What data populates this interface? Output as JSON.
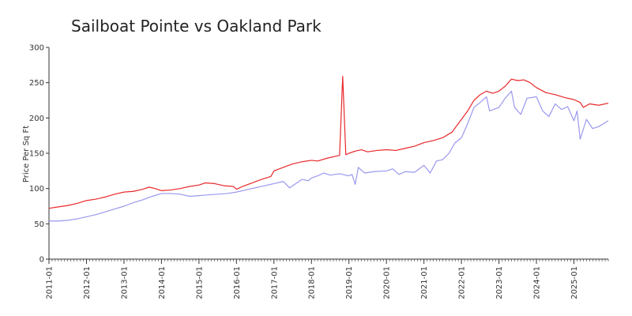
{
  "chart_data": {
    "type": "line",
    "title": "Sailboat Pointe vs Oakland Park",
    "xlabel": "",
    "ylabel": "Price Per Sq Ft",
    "ylim": [
      0,
      300
    ],
    "yticks": [
      0,
      50,
      100,
      150,
      200,
      250,
      300
    ],
    "xlim": [
      "2011-01",
      "2025-12"
    ],
    "xticks": [
      "2011-01",
      "2012-01",
      "2013-01",
      "2014-01",
      "2015-01",
      "2016-01",
      "2017-01",
      "2018-01",
      "2019-01",
      "2020-01",
      "2021-01",
      "2022-01",
      "2023-01",
      "2024-01",
      "2025-01"
    ],
    "grid": false,
    "legend": "none",
    "series": [
      {
        "color": "#e8282a",
        "points": [
          [
            "2011-01",
            72
          ],
          [
            "2011-04",
            74
          ],
          [
            "2011-07",
            76
          ],
          [
            "2011-10",
            79
          ],
          [
            "2012-01",
            83
          ],
          [
            "2012-04",
            85
          ],
          [
            "2012-07",
            88
          ],
          [
            "2012-10",
            92
          ],
          [
            "2013-01",
            95
          ],
          [
            "2013-04",
            96
          ],
          [
            "2013-07",
            99
          ],
          [
            "2013-09",
            102
          ],
          [
            "2013-11",
            100
          ],
          [
            "2014-01",
            97
          ],
          [
            "2014-04",
            98
          ],
          [
            "2014-07",
            100
          ],
          [
            "2014-10",
            103
          ],
          [
            "2015-01",
            105
          ],
          [
            "2015-03",
            108
          ],
          [
            "2015-06",
            107
          ],
          [
            "2015-09",
            104
          ],
          [
            "2015-12",
            103
          ],
          [
            "2016-01",
            99
          ],
          [
            "2016-03",
            103
          ],
          [
            "2016-06",
            108
          ],
          [
            "2016-09",
            113
          ],
          [
            "2016-12",
            117
          ],
          [
            "2017-01",
            125
          ],
          [
            "2017-04",
            130
          ],
          [
            "2017-07",
            135
          ],
          [
            "2017-10",
            138
          ],
          [
            "2018-01",
            140
          ],
          [
            "2018-03",
            139
          ],
          [
            "2018-06",
            143
          ],
          [
            "2018-09",
            146
          ],
          [
            "2018-10",
            147
          ],
          [
            "2018-11",
            259
          ],
          [
            "2018-12",
            148
          ],
          [
            "2019-01",
            150
          ],
          [
            "2019-03",
            153
          ],
          [
            "2019-05",
            155
          ],
          [
            "2019-07",
            152
          ],
          [
            "2019-10",
            154
          ],
          [
            "2020-01",
            155
          ],
          [
            "2020-04",
            154
          ],
          [
            "2020-07",
            157
          ],
          [
            "2020-10",
            160
          ],
          [
            "2021-01",
            165
          ],
          [
            "2021-04",
            168
          ],
          [
            "2021-07",
            172
          ],
          [
            "2021-10",
            180
          ],
          [
            "2022-01",
            198
          ],
          [
            "2022-03",
            210
          ],
          [
            "2022-05",
            225
          ],
          [
            "2022-07",
            233
          ],
          [
            "2022-09",
            238
          ],
          [
            "2022-11",
            235
          ],
          [
            "2023-01",
            238
          ],
          [
            "2023-03",
            245
          ],
          [
            "2023-05",
            255
          ],
          [
            "2023-07",
            253
          ],
          [
            "2023-09",
            254
          ],
          [
            "2023-11",
            250
          ],
          [
            "2024-01",
            243
          ],
          [
            "2024-04",
            236
          ],
          [
            "2024-07",
            233
          ],
          [
            "2024-10",
            229
          ],
          [
            "2025-01",
            226
          ],
          [
            "2025-03",
            222
          ],
          [
            "2025-04",
            215
          ],
          [
            "2025-06",
            220
          ],
          [
            "2025-09",
            218
          ],
          [
            "2025-12",
            221
          ]
        ]
      },
      {
        "color": "#9a98ee",
        "points": [
          [
            "2011-01",
            54
          ],
          [
            "2011-04",
            54
          ],
          [
            "2011-07",
            55
          ],
          [
            "2011-10",
            57
          ],
          [
            "2012-01",
            60
          ],
          [
            "2012-04",
            63
          ],
          [
            "2012-07",
            67
          ],
          [
            "2012-10",
            71
          ],
          [
            "2013-01",
            75
          ],
          [
            "2013-04",
            80
          ],
          [
            "2013-07",
            84
          ],
          [
            "2013-10",
            89
          ],
          [
            "2014-01",
            93
          ],
          [
            "2014-04",
            93
          ],
          [
            "2014-07",
            92
          ],
          [
            "2014-10",
            89
          ],
          [
            "2015-01",
            90
          ],
          [
            "2015-04",
            91
          ],
          [
            "2015-07",
            92
          ],
          [
            "2015-10",
            93
          ],
          [
            "2016-01",
            95
          ],
          [
            "2016-04",
            98
          ],
          [
            "2016-07",
            101
          ],
          [
            "2016-10",
            104
          ],
          [
            "2017-01",
            107
          ],
          [
            "2017-04",
            110
          ],
          [
            "2017-06",
            101
          ],
          [
            "2017-08",
            107
          ],
          [
            "2017-10",
            113
          ],
          [
            "2017-12",
            111
          ],
          [
            "2018-01",
            115
          ],
          [
            "2018-03",
            118
          ],
          [
            "2018-05",
            122
          ],
          [
            "2018-07",
            119
          ],
          [
            "2018-10",
            121
          ],
          [
            "2019-01",
            118
          ],
          [
            "2019-02",
            120
          ],
          [
            "2019-03",
            106
          ],
          [
            "2019-04",
            130
          ],
          [
            "2019-06",
            122
          ],
          [
            "2019-09",
            124
          ],
          [
            "2020-01",
            125
          ],
          [
            "2020-03",
            128
          ],
          [
            "2020-05",
            120
          ],
          [
            "2020-07",
            124
          ],
          [
            "2020-10",
            123
          ],
          [
            "2021-01",
            133
          ],
          [
            "2021-03",
            122
          ],
          [
            "2021-05",
            139
          ],
          [
            "2021-07",
            141
          ],
          [
            "2021-09",
            150
          ],
          [
            "2021-11",
            165
          ],
          [
            "2022-01",
            172
          ],
          [
            "2022-03",
            192
          ],
          [
            "2022-05",
            215
          ],
          [
            "2022-07",
            222
          ],
          [
            "2022-09",
            230
          ],
          [
            "2022-10",
            210
          ],
          [
            "2023-01",
            215
          ],
          [
            "2023-03",
            228
          ],
          [
            "2023-05",
            238
          ],
          [
            "2023-06",
            215
          ],
          [
            "2023-08",
            205
          ],
          [
            "2023-10",
            228
          ],
          [
            "2024-01",
            230
          ],
          [
            "2024-03",
            210
          ],
          [
            "2024-05",
            202
          ],
          [
            "2024-07",
            220
          ],
          [
            "2024-09",
            212
          ],
          [
            "2024-11",
            216
          ],
          [
            "2025-01",
            196
          ],
          [
            "2025-02",
            210
          ],
          [
            "2025-03",
            170
          ],
          [
            "2025-05",
            198
          ],
          [
            "2025-07",
            185
          ],
          [
            "2025-09",
            188
          ],
          [
            "2025-12",
            196
          ]
        ]
      }
    ]
  }
}
